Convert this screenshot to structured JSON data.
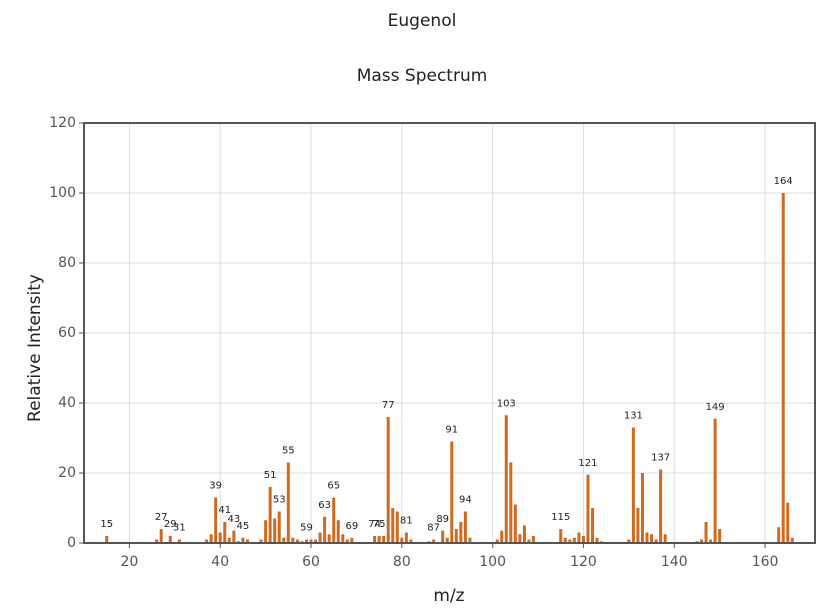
{
  "chart_data": {
    "type": "bar",
    "title": "Eugenol",
    "subtitle": "Mass Spectrum",
    "x_label": "m/z",
    "y_label": "Relative Intensity",
    "color": "#d2691e",
    "grid": true,
    "xlim": [
      10,
      171
    ],
    "xticks": [
      20,
      40,
      60,
      80,
      100,
      120,
      140,
      160
    ],
    "ylim": [
      0,
      120
    ],
    "yticks": [
      0,
      20,
      40,
      60,
      80,
      100,
      120
    ],
    "x": [
      15,
      26,
      27,
      29,
      31,
      37,
      38,
      39,
      40,
      41,
      42,
      43,
      44,
      45,
      46,
      49,
      50,
      51,
      52,
      53,
      54,
      55,
      56,
      57,
      58,
      59,
      60,
      61,
      62,
      63,
      64,
      65,
      66,
      67,
      68,
      69,
      74,
      75,
      76,
      77,
      78,
      79,
      80,
      81,
      82,
      86,
      87,
      89,
      90,
      91,
      92,
      93,
      94,
      95,
      101,
      102,
      103,
      104,
      105,
      106,
      107,
      108,
      109,
      115,
      116,
      117,
      118,
      119,
      120,
      121,
      122,
      123,
      124,
      130,
      131,
      132,
      133,
      134,
      135,
      136,
      137,
      138,
      145,
      146,
      147,
      148,
      149,
      150,
      163,
      164,
      165,
      166
    ],
    "values": [
      2,
      1,
      4,
      2,
      1,
      1,
      2.5,
      13,
      3,
      6,
      1.5,
      3.5,
      0.5,
      1.5,
      1,
      1,
      6.5,
      16,
      7,
      9,
      1.5,
      23,
      1.5,
      1,
      0.5,
      1,
      1,
      1,
      3,
      7.5,
      2.5,
      13,
      6.5,
      2.5,
      1,
      1.5,
      2,
      2,
      2,
      36,
      10,
      9,
      1.5,
      3,
      1,
      0.5,
      1,
      3.5,
      1.5,
      29,
      4,
      6,
      9,
      1.5,
      1,
      3.5,
      36.5,
      23,
      11,
      2.5,
      5,
      1,
      2,
      4,
      1.5,
      1,
      1.5,
      3,
      2,
      19.5,
      10,
      1.5,
      0.5,
      1,
      33,
      10,
      20,
      3,
      2.5,
      1,
      21,
      2.5,
      0.5,
      1,
      6,
      1,
      35.5,
      4,
      4.5,
      100,
      11.5,
      1.5
    ],
    "peak_labels": [
      15,
      27,
      29,
      31,
      39,
      41,
      43,
      45,
      51,
      53,
      55,
      59,
      63,
      65,
      69,
      74,
      75,
      77,
      81,
      87,
      89,
      91,
      94,
      103,
      115,
      121,
      131,
      137,
      149,
      164
    ]
  }
}
